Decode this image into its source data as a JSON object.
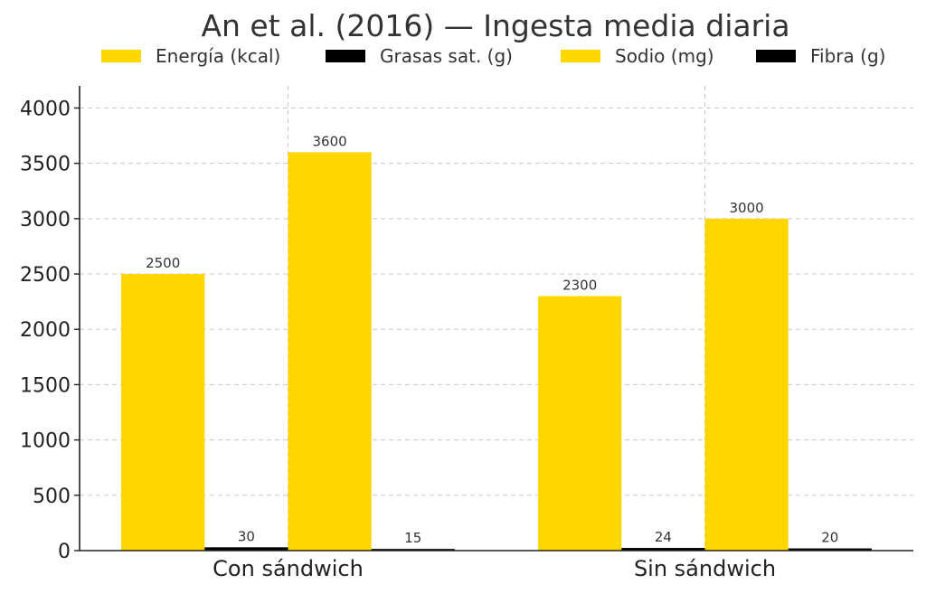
{
  "chart_data": {
    "type": "bar",
    "title": "An et al. (2016) — Ingesta media diaria",
    "categories": [
      "Con sándwich",
      "Sin sándwich"
    ],
    "series": [
      {
        "name": "Energía (kcal)",
        "values": [
          2500,
          2300
        ],
        "color": "#FFD700"
      },
      {
        "name": "Grasas sat. (g)",
        "values": [
          30,
          24
        ],
        "color": "#000000"
      },
      {
        "name": "Sodio (mg)",
        "values": [
          3600,
          3000
        ],
        "color": "#FFD700"
      },
      {
        "name": "Fibra (g)",
        "values": [
          15,
          20
        ],
        "color": "#000000"
      }
    ],
    "ylim": [
      0,
      4200
    ],
    "yticks": [
      "0",
      "500",
      "1000",
      "1500",
      "2000",
      "2500",
      "3000",
      "3500",
      "4000"
    ],
    "xlabel": "",
    "ylabel": "",
    "legend_position": "top",
    "grid": true
  }
}
